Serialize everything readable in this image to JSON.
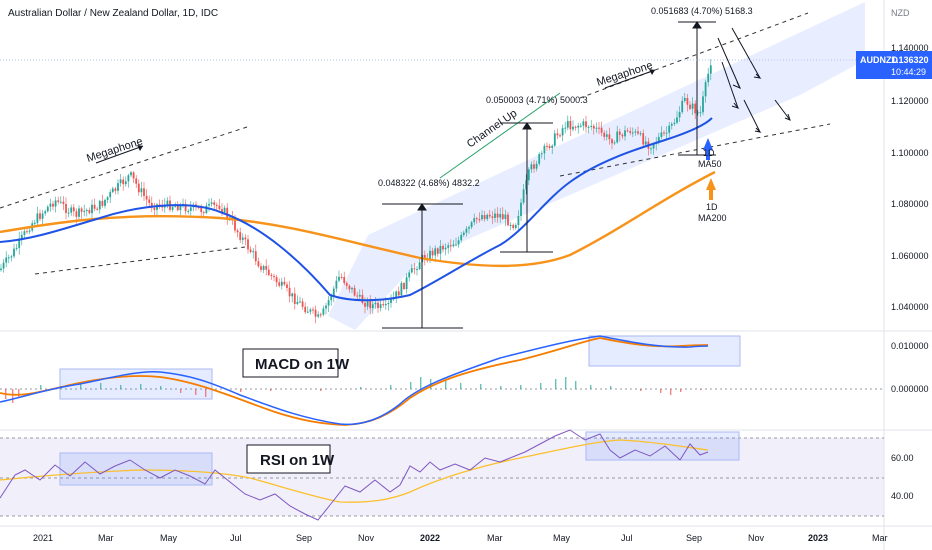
{
  "header": {
    "title": "Australian Dollar / New Zealand Dollar, 1D, IDC",
    "currency": "NZD"
  },
  "price_tag": {
    "symbol": "AUDNZD",
    "price": "1.136320",
    "countdown": "10:44:29",
    "color": "#2962ff"
  },
  "chart_data": [
    {
      "type": "candlestick",
      "series": [
        {
          "name": "MA50",
          "color": "#1e53e5"
        },
        {
          "name": "MA200",
          "color": "#f7931a"
        }
      ],
      "y_ticks": [
        "1.140000",
        "1.120000",
        "1.100000",
        "1.080000",
        "1.060000",
        "1.040000"
      ],
      "ylim": [
        1.028,
        1.155
      ],
      "x_ticks": [
        "2021",
        "Mar",
        "May",
        "Jul",
        "Sep",
        "Nov",
        "2022",
        "Mar",
        "May",
        "Jul",
        "Sep",
        "Nov",
        "2023",
        "Mar"
      ],
      "annotations": {
        "megaphone_left": "Megaphone",
        "megaphone_right": "Megaphone",
        "channel": "Channel Up",
        "measure_1": "0.048322 (4.68%) 4832.2",
        "measure_2": "0.050003 (4.71%) 5000.3",
        "measure_3": "0.051683 (4.70%) 5168.3",
        "ma50_label": [
          "1D",
          "MA50"
        ],
        "ma200_label": [
          "1D",
          "MA200"
        ]
      }
    },
    {
      "type": "line",
      "title": "MACD on 1W",
      "y_ticks": [
        "0.010000",
        "0.000000"
      ],
      "series": [
        {
          "name": "MACD",
          "color": "#2962ff"
        },
        {
          "name": "Signal",
          "color": "#f57c00"
        }
      ]
    },
    {
      "type": "line",
      "title": "RSI on 1W",
      "y_ticks": [
        "60.00",
        "40.00"
      ],
      "series": [
        {
          "name": "RSI",
          "color": "#7e57c2"
        },
        {
          "name": "RSI MA",
          "color": "#fbc02d"
        }
      ]
    }
  ]
}
